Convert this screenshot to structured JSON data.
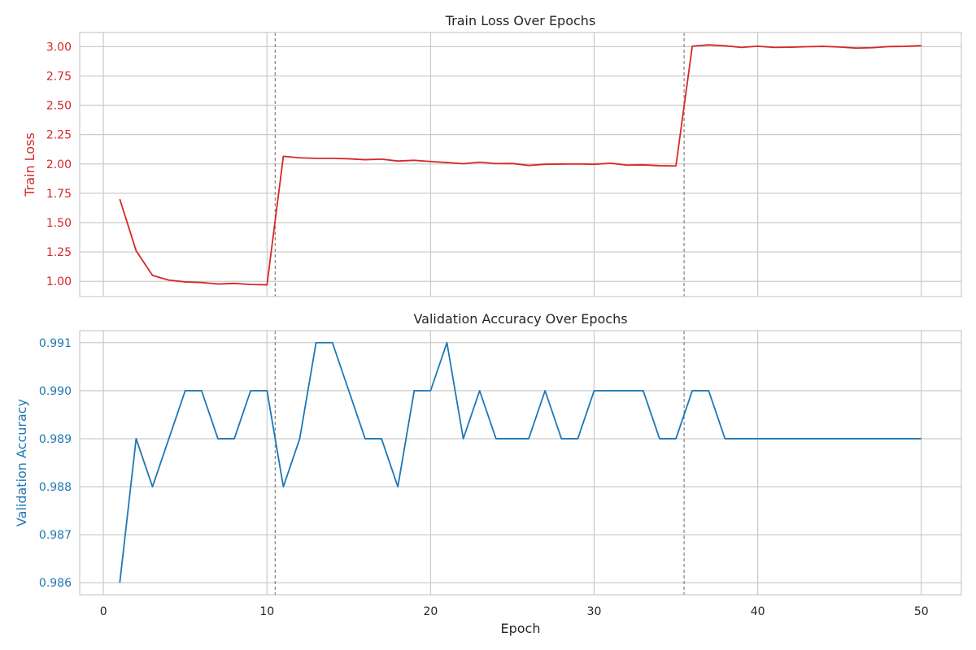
{
  "chart_data": [
    {
      "type": "line",
      "title": "Train Loss Over Epochs",
      "xlabel": "",
      "ylabel": "Train Loss",
      "color": "#d62728",
      "xlim": [
        -1.45,
        52.45
      ],
      "ylim": [
        0.87,
        3.12
      ],
      "xticks": [
        0,
        10,
        20,
        30,
        40,
        50
      ],
      "yticks": [
        1.0,
        1.25,
        1.5,
        1.75,
        2.0,
        2.25,
        2.5,
        2.75,
        3.0
      ],
      "ytick_labels": [
        "1.00",
        "1.25",
        "1.50",
        "1.75",
        "2.00",
        "2.25",
        "2.50",
        "2.75",
        "3.00"
      ],
      "grid": true,
      "vlines": [
        10.5,
        35.5
      ],
      "x": [
        1,
        2,
        3,
        4,
        5,
        6,
        7,
        8,
        9,
        10,
        11,
        12,
        13,
        14,
        15,
        16,
        17,
        18,
        19,
        20,
        21,
        22,
        23,
        24,
        25,
        26,
        27,
        28,
        29,
        30,
        31,
        32,
        33,
        34,
        35,
        36,
        37,
        38,
        39,
        40,
        41,
        42,
        43,
        44,
        45,
        46,
        47,
        48,
        49,
        50
      ],
      "y": [
        1.7,
        1.26,
        1.05,
        1.01,
        0.995,
        0.99,
        0.977,
        0.982,
        0.973,
        0.97,
        2.065,
        2.052,
        2.048,
        2.048,
        2.044,
        2.036,
        2.041,
        2.025,
        2.031,
        2.021,
        2.012,
        2.002,
        2.015,
        2.003,
        2.004,
        1.987,
        1.997,
        1.999,
        2.0,
        1.997,
        2.006,
        1.99,
        1.992,
        1.985,
        1.983,
        3.003,
        3.015,
        3.007,
        2.993,
        3.003,
        2.993,
        2.995,
        2.999,
        3.002,
        2.996,
        2.987,
        2.99,
        3.0,
        3.002,
        3.008
      ]
    },
    {
      "type": "line",
      "title": "Validation Accuracy Over Epochs",
      "xlabel": "Epoch",
      "ylabel": "Validation Accuracy",
      "color": "#1f77b4",
      "xlim": [
        -1.45,
        52.45
      ],
      "ylim": [
        0.98575,
        0.99125
      ],
      "xticks": [
        0,
        10,
        20,
        30,
        40,
        50
      ],
      "yticks": [
        0.986,
        0.987,
        0.988,
        0.989,
        0.99,
        0.991
      ],
      "ytick_labels": [
        "0.986",
        "0.987",
        "0.988",
        "0.989",
        "0.990",
        "0.991"
      ],
      "grid": true,
      "vlines": [
        10.5,
        35.5
      ],
      "x": [
        1,
        2,
        3,
        4,
        5,
        6,
        7,
        8,
        9,
        10,
        11,
        12,
        13,
        14,
        15,
        16,
        17,
        18,
        19,
        20,
        21,
        22,
        23,
        24,
        25,
        26,
        27,
        28,
        29,
        30,
        31,
        32,
        33,
        34,
        35,
        36,
        37,
        38,
        39,
        40,
        41,
        42,
        43,
        44,
        45,
        46,
        47,
        48,
        49,
        50
      ],
      "y": [
        0.986,
        0.989,
        0.988,
        0.989,
        0.99,
        0.99,
        0.989,
        0.989,
        0.99,
        0.99,
        0.988,
        0.989,
        0.991,
        0.991,
        0.99,
        0.989,
        0.989,
        0.988,
        0.99,
        0.99,
        0.991,
        0.989,
        0.99,
        0.989,
        0.989,
        0.989,
        0.99,
        0.989,
        0.989,
        0.99,
        0.99,
        0.99,
        0.99,
        0.989,
        0.989,
        0.99,
        0.99,
        0.989,
        0.989,
        0.989,
        0.989,
        0.989,
        0.989,
        0.989,
        0.989,
        0.989,
        0.989,
        0.989,
        0.989,
        0.989
      ]
    }
  ]
}
